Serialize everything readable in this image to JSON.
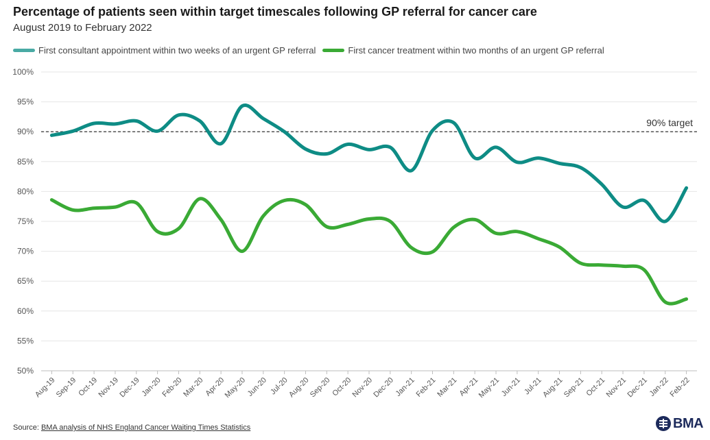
{
  "header": {
    "title": "Percentage of patients seen within target timescales following GP referral for cancer care",
    "subtitle": "August 2019 to February 2022"
  },
  "footer": {
    "source_prefix": "Source: ",
    "source_link": "BMA analysis of NHS England Cancer Waiting Times Statistics",
    "logo_text": "BMA"
  },
  "colors": {
    "series_1": "#0e8c85",
    "series_2": "#3aaa35",
    "legend_1": "#49aaa4",
    "target_line": "#444444",
    "logo": "#1c2a5b"
  },
  "chart_data": {
    "type": "line",
    "title": "Percentage of patients seen within target timescales following GP referral for cancer care",
    "subtitle": "August 2019 to February 2022",
    "categories": [
      "Aug-19",
      "Sep-19",
      "Oct-19",
      "Nov-19",
      "Dec-19",
      "Jan-20",
      "Feb-20",
      "Mar-20",
      "Apr-20",
      "May-20",
      "Jun-20",
      "Jul-20",
      "Aug-20",
      "Sep-20",
      "Oct-20",
      "Nov-20",
      "Dec-20",
      "Jan-21",
      "Feb-21",
      "Mar-21",
      "Apr-21",
      "May-21",
      "Jun-21",
      "Jul-21",
      "Aug-21",
      "Sep-21",
      "Oct-21",
      "Nov-21",
      "Dec-21",
      "Jan-22",
      "Feb-22"
    ],
    "series": [
      {
        "name": "First consultant appointment within two weeks of an urgent GP referral",
        "values": [
          89.4,
          90.1,
          91.4,
          91.3,
          91.8,
          90.1,
          92.8,
          91.8,
          88.0,
          94.3,
          92.2,
          90.0,
          87.1,
          86.3,
          87.9,
          87.0,
          87.4,
          83.5,
          90.2,
          91.5,
          85.6,
          87.4,
          84.9,
          85.6,
          84.7,
          84.0,
          81.2,
          77.4,
          78.5,
          75.0,
          80.6
        ]
      },
      {
        "name": "First cancer treatment within two months of an urgent GP referral",
        "values": [
          78.6,
          76.9,
          77.2,
          77.4,
          78.1,
          73.3,
          73.8,
          78.8,
          75.3,
          70.0,
          75.9,
          78.5,
          77.8,
          74.1,
          74.5,
          75.4,
          75.0,
          70.6,
          69.9,
          74.0,
          75.3,
          73.0,
          73.3,
          72.1,
          70.7,
          68.0,
          67.7,
          67.5,
          66.9,
          61.5,
          62.0
        ]
      }
    ],
    "target": {
      "value": 90,
      "label": "90% target"
    },
    "ylim": [
      50,
      100
    ],
    "yticks": [
      50,
      55,
      60,
      65,
      70,
      75,
      80,
      85,
      90,
      95,
      100
    ],
    "ytick_suffix": "%",
    "grid": true,
    "legend_position": "top-left"
  }
}
